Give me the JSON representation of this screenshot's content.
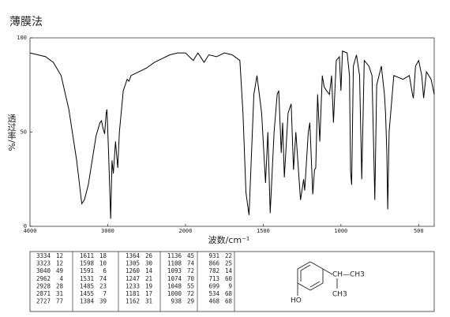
{
  "chart_data": {
    "type": "line",
    "title": "薄膜法",
    "xlabel": "波数/cm⁻¹",
    "ylabel": "透过率/%",
    "color": "#000000",
    "x": [
      4000,
      3900,
      3800,
      3700,
      3600,
      3500,
      3400,
      3334,
      3300,
      3250,
      3200,
      3150,
      3100,
      3080,
      3060,
      3040,
      3020,
      3010,
      2990,
      2962,
      2945,
      2928,
      2900,
      2871,
      2850,
      2800,
      2750,
      2727,
      2700,
      2600,
      2500,
      2400,
      2300,
      2200,
      2100,
      2000,
      1950,
      1920,
      1880,
      1850,
      1800,
      1750,
      1700,
      1650,
      1630,
      1611,
      1598,
      1591,
      1560,
      1540,
      1531,
      1510,
      1485,
      1470,
      1455,
      1430,
      1410,
      1400,
      1384,
      1375,
      1364,
      1340,
      1320,
      1305,
      1290,
      1260,
      1247,
      1240,
      1233,
      1210,
      1200,
      1181,
      1170,
      1162,
      1150,
      1136,
      1120,
      1108,
      1093,
      1074,
      1060,
      1048,
      1030,
      1010,
      1000,
      990,
      960,
      945,
      938,
      931,
      920,
      900,
      880,
      866,
      850,
      820,
      800,
      782,
      770,
      740,
      720,
      713,
      705,
      699,
      690,
      660,
      600,
      560,
      540,
      534,
      520,
      500,
      480,
      468,
      450,
      420,
      400
    ],
    "values": [
      92,
      91,
      90,
      87,
      80,
      62,
      35,
      12,
      14,
      22,
      35,
      48,
      55,
      56,
      52,
      49,
      60,
      62,
      40,
      4,
      35,
      28,
      45,
      31,
      50,
      72,
      78,
      77,
      80,
      82,
      84,
      87,
      89,
      91,
      92,
      92,
      88,
      92,
      87,
      91,
      90,
      92,
      91,
      88,
      60,
      18,
      10,
      6,
      70,
      80,
      74,
      60,
      23,
      50,
      7,
      50,
      70,
      72,
      39,
      55,
      26,
      60,
      65,
      30,
      50,
      14,
      21,
      25,
      19,
      50,
      55,
      17,
      30,
      31,
      70,
      45,
      80,
      74,
      72,
      70,
      80,
      55,
      88,
      90,
      72,
      93,
      92,
      80,
      29,
      22,
      85,
      91,
      80,
      25,
      88,
      85,
      80,
      14,
      75,
      85,
      70,
      60,
      40,
      9,
      50,
      80,
      78,
      80,
      70,
      68,
      85,
      88,
      80,
      68,
      82,
      78,
      70
    ],
    "xlim": [
      4000,
      400
    ],
    "xticks": [
      4000,
      3000,
      2000,
      1500,
      1000,
      500
    ],
    "ylim": [
      0,
      100
    ],
    "yticks": [
      0,
      50,
      100
    ]
  },
  "peak_table": [
    [
      [
        3334,
        12
      ],
      [
        3323,
        12
      ],
      [
        3040,
        49
      ],
      [
        2962,
        4
      ],
      [
        2928,
        28
      ],
      [
        2871,
        31
      ],
      [
        2727,
        77
      ]
    ],
    [
      [
        1611,
        18
      ],
      [
        1598,
        10
      ],
      [
        1591,
        6
      ],
      [
        1531,
        74
      ],
      [
        1485,
        23
      ],
      [
        1455,
        7
      ],
      [
        1384,
        39
      ]
    ],
    [
      [
        1364,
        26
      ],
      [
        1305,
        30
      ],
      [
        1260,
        14
      ],
      [
        1247,
        21
      ],
      [
        1233,
        19
      ],
      [
        1181,
        17
      ],
      [
        1162,
        31
      ]
    ],
    [
      [
        1136,
        45
      ],
      [
        1108,
        74
      ],
      [
        1093,
        72
      ],
      [
        1074,
        70
      ],
      [
        1048,
        55
      ],
      [
        1000,
        72
      ],
      [
        938,
        29
      ]
    ],
    [
      [
        931,
        22
      ],
      [
        866,
        25
      ],
      [
        782,
        14
      ],
      [
        713,
        60
      ],
      [
        699,
        9
      ],
      [
        534,
        68
      ],
      [
        468,
        68
      ]
    ]
  ],
  "structure": {
    "substituent": "CH—CH3",
    "methyl": "CH3",
    "hydroxyl": "HO"
  }
}
